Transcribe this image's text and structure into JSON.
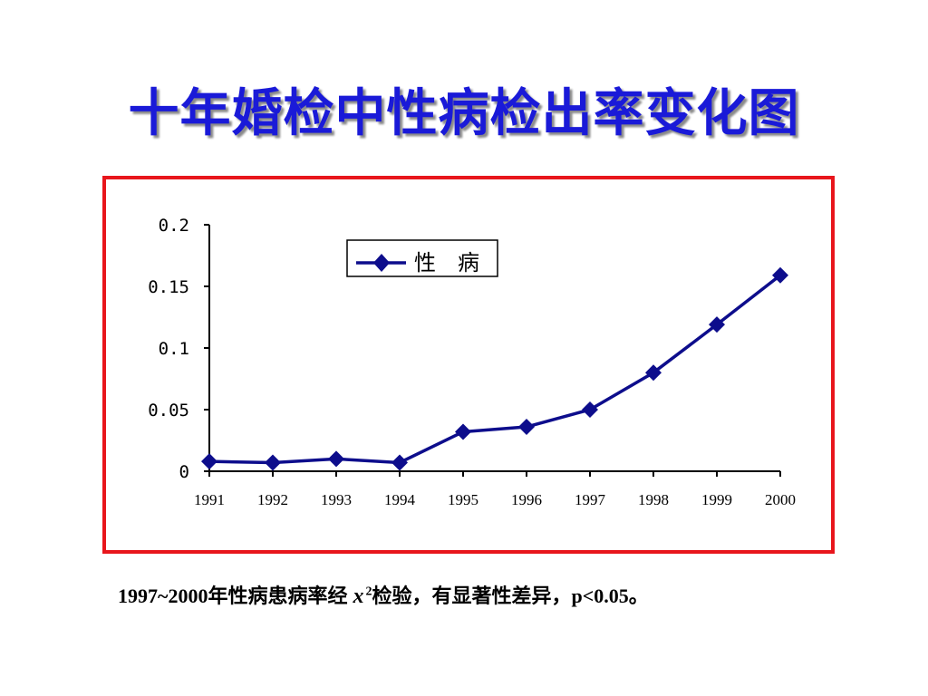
{
  "slide": {
    "title": "十年婚检中性病检出率变化图",
    "footnote": {
      "prefix": "1997~2000年性病患病率经",
      "chi_symbol": "x",
      "chi_sup": "2",
      "suffix": "检验，有显著性差异，p<0.05。"
    }
  },
  "colors": {
    "title": "#1a1ad8",
    "frame_border": "#e8161c",
    "series_line": "#0d0d8c",
    "axis": "#000000"
  },
  "chart_data": {
    "type": "line",
    "title": "",
    "xlabel": "",
    "ylabel": "",
    "categories": [
      "1991",
      "1992",
      "1993",
      "1994",
      "1995",
      "1996",
      "1997",
      "1998",
      "1999",
      "2000"
    ],
    "series": [
      {
        "name": "性　病",
        "values": [
          0.008,
          0.007,
          0.01,
          0.007,
          0.032,
          0.036,
          0.05,
          0.08,
          0.119,
          0.159
        ],
        "marker": "diamond"
      }
    ],
    "ylim": [
      0,
      0.2
    ],
    "yticks": [
      "0",
      "0.05",
      "0.1",
      "0.15",
      "0.2"
    ],
    "grid": false,
    "legend": "top-center"
  }
}
